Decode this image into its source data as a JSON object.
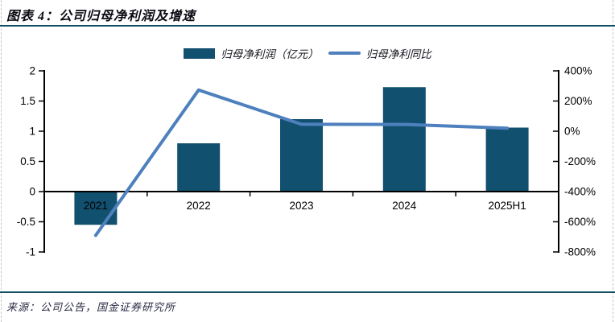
{
  "figure": {
    "title": "图表 4：公司归母净利润及增速",
    "source": "来源：公司公告，国金证券研究所"
  },
  "legend": [
    {
      "swatch": "bar-swatch",
      "label": "归母净利润（亿元）"
    },
    {
      "swatch": "line-swatch",
      "label": "归母净利同比"
    }
  ],
  "colors": {
    "bar": "#12506F",
    "line": "#4E80BE",
    "rule": "#124F63",
    "axis": "#000000"
  },
  "chart_data": {
    "type": "bar",
    "subtype": "bar+line dual-axis",
    "categories": [
      "2021",
      "2022",
      "2023",
      "2024",
      "2025H1"
    ],
    "series": [
      {
        "name": "归母净利润（亿元）",
        "type": "bar",
        "axis": "left",
        "values": [
          -0.55,
          0.8,
          1.2,
          1.73,
          1.06
        ]
      },
      {
        "name": "归母净利同比",
        "type": "line",
        "axis": "right",
        "unit": "%",
        "values": [
          -690,
          273,
          46,
          45,
          20
        ]
      }
    ],
    "title": "公司归母净利润及增速",
    "xlabel": "",
    "ylabel_left": "亿元",
    "ylabel_right": "%",
    "left_axis": {
      "ticks": [
        "2",
        "1.5",
        "1",
        "0.5",
        "0",
        "-0.5",
        "-1"
      ],
      "range": [
        -1,
        2
      ]
    },
    "right_axis": {
      "ticks": [
        "400%",
        "200%",
        "0%",
        "-200%",
        "-400%",
        "-600%",
        "-800%"
      ],
      "range": [
        -800,
        400
      ]
    },
    "grid": false,
    "legend_position": "top"
  }
}
